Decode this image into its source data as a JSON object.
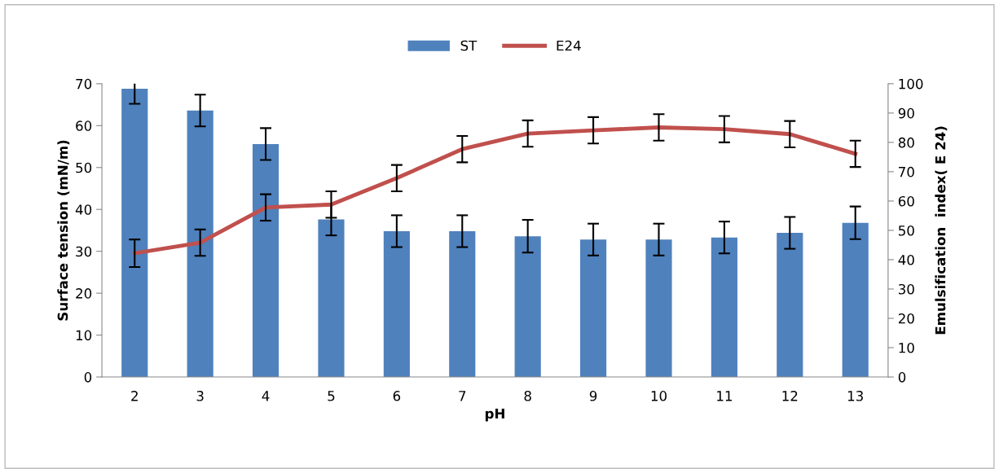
{
  "chart_data": {
    "type": "bar",
    "xlabel": "pH",
    "ylabel": "Surface tension (mN/m)",
    "y2label": "Emulsification  index( E 24)",
    "categories": [
      "2",
      "3",
      "4",
      "5",
      "6",
      "7",
      "8",
      "9",
      "10",
      "11",
      "12",
      "13"
    ],
    "series": [
      {
        "name": "ST",
        "color": "#4f81bd",
        "values": [
          68.8,
          63.6,
          55.6,
          37.6,
          34.8,
          34.8,
          33.6,
          32.8,
          32.8,
          33.3,
          34.4,
          36.8
        ],
        "errors": [
          3.6,
          3.8,
          3.8,
          3.8,
          3.8,
          3.8,
          3.9,
          3.8,
          3.8,
          3.8,
          3.8,
          3.9
        ]
      },
      {
        "name": "E24",
        "type": "line",
        "axis": "y2",
        "color": "#c0504d",
        "values": [
          42.2,
          45.8,
          57.8,
          58.8,
          67.8,
          77.7,
          83.0,
          84.1,
          85.1,
          84.5,
          82.8,
          76.1
        ],
        "errors": [
          4.7,
          4.5,
          4.5,
          4.5,
          4.5,
          4.5,
          4.5,
          4.5,
          4.5,
          4.5,
          4.5,
          4.5
        ]
      }
    ],
    "ylim": [
      0,
      70
    ],
    "yticks": [
      0,
      10,
      20,
      30,
      40,
      50,
      60,
      70
    ],
    "y2lim": [
      0,
      100
    ],
    "y2ticks": [
      0,
      10,
      20,
      30,
      40,
      50,
      60,
      70,
      80,
      90,
      100
    ],
    "legend": "top",
    "grid": false,
    "marker": "none",
    "line_style": "solid"
  }
}
